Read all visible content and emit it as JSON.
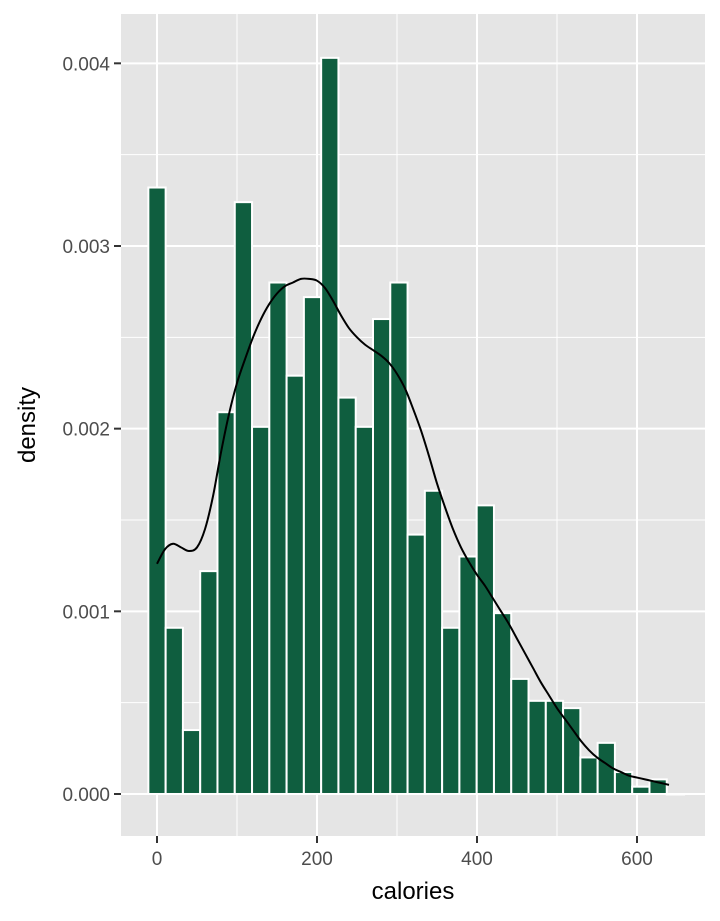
{
  "chart_data": {
    "type": "bar",
    "xlabel": "calories",
    "ylabel": "density",
    "xlim": [
      -45,
      685
    ],
    "ylim": [
      -0.00023,
      0.00427
    ],
    "x_ticks": [
      0,
      200,
      400,
      600
    ],
    "x_tick_labels": [
      "0",
      "200",
      "400",
      "600"
    ],
    "y_ticks": [
      0,
      0.001,
      0.002,
      0.003,
      0.004
    ],
    "y_tick_labels": [
      "0.000",
      "0.001",
      "0.002",
      "0.003",
      "0.004"
    ],
    "grid": true,
    "legend": "none",
    "bin_width": 21.6,
    "bin_centers": [
      0,
      21.6,
      43.2,
      64.8,
      86.4,
      108,
      129.6,
      151.2,
      172.8,
      194.4,
      216,
      237.6,
      259.2,
      280.8,
      302.4,
      324,
      345.6,
      367.2,
      388.8,
      410.4,
      432,
      453.6,
      475.2,
      496.8,
      518.4,
      540,
      561.6,
      583.2,
      604.8,
      626.4,
      648
    ],
    "density": [
      0.00332,
      0.00091,
      0.00035,
      0.00122,
      0.00209,
      0.00324,
      0.00201,
      0.0028,
      0.00229,
      0.00272,
      0.00403,
      0.00217,
      0.00201,
      0.0026,
      0.0028,
      0.00142,
      0.00166,
      0.00091,
      0.0013,
      0.00158,
      0.00099,
      0.00063,
      0.00051,
      0.00051,
      0.00047,
      0.0002,
      0.00028,
      0.00012,
      4e-05,
      8e-05,
      0
    ],
    "density_curve": {
      "x": [
        0,
        10,
        20,
        30,
        40,
        50,
        60,
        70,
        80,
        90,
        100,
        110,
        120,
        130,
        140,
        150,
        160,
        170,
        180,
        190,
        200,
        210,
        220,
        230,
        240,
        250,
        260,
        270,
        280,
        290,
        300,
        310,
        320,
        330,
        340,
        350,
        360,
        370,
        380,
        390,
        400,
        410,
        420,
        430,
        440,
        450,
        460,
        470,
        480,
        490,
        500,
        510,
        520,
        530,
        540,
        550,
        560,
        570,
        580,
        590,
        600,
        610,
        620,
        630,
        640
      ],
      "y": [
        0.00126,
        0.00134,
        0.00137,
        0.00135,
        0.00133,
        0.00135,
        0.00145,
        0.00163,
        0.00187,
        0.00208,
        0.00225,
        0.00238,
        0.0025,
        0.0026,
        0.00268,
        0.00274,
        0.00278,
        0.0028,
        0.00282,
        0.00282,
        0.00281,
        0.00277,
        0.0027,
        0.00262,
        0.00255,
        0.0025,
        0.00246,
        0.00243,
        0.0024,
        0.00236,
        0.0023,
        0.00222,
        0.00211,
        0.00199,
        0.00185,
        0.0017,
        0.00157,
        0.00145,
        0.00135,
        0.00127,
        0.0012,
        0.00114,
        0.00107,
        0.001,
        0.00093,
        0.00085,
        0.00077,
        0.00069,
        0.00061,
        0.00054,
        0.00047,
        0.00041,
        0.00035,
        0.00029,
        0.00024,
        0.0002,
        0.00017,
        0.00014,
        0.00012,
        0.0001,
        9e-05,
        8e-05,
        7e-05,
        6e-05,
        5e-05
      ]
    },
    "colors": {
      "bar_fill": "#0f5e3f",
      "bar_stroke": "#ffffff",
      "panel_background": "#e5e5e5",
      "grid_major": "#ffffff",
      "curve": "#000000"
    }
  }
}
